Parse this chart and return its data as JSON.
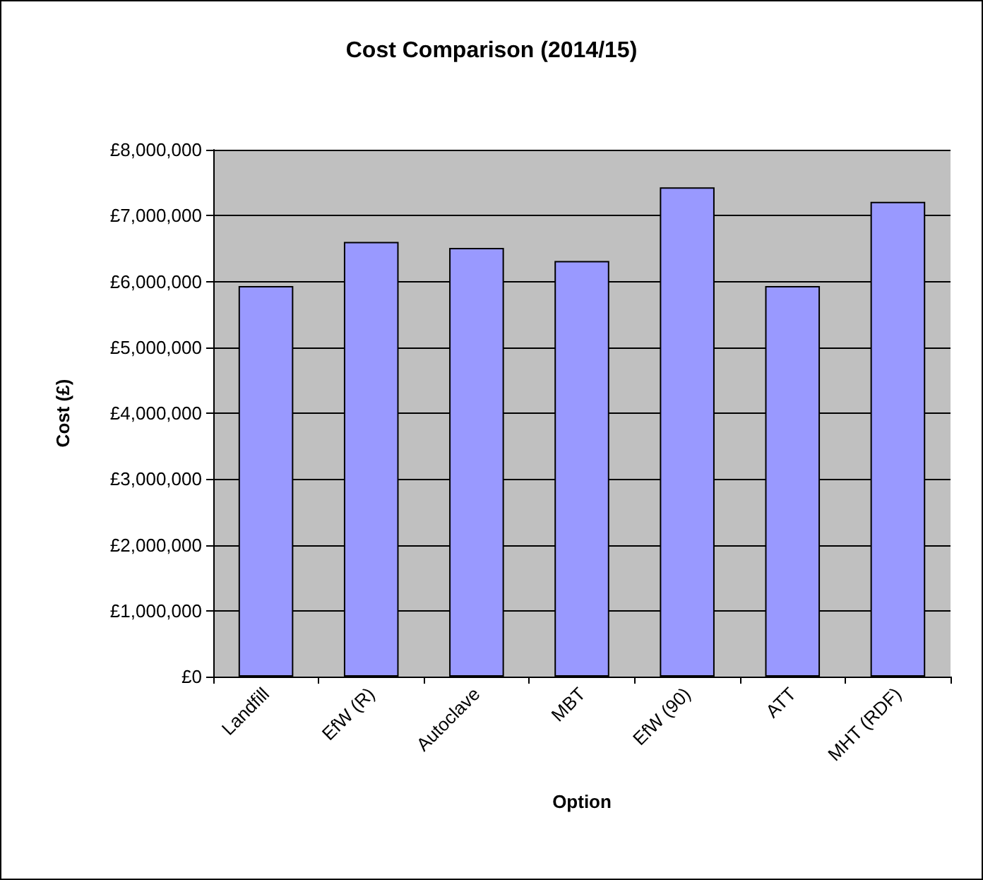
{
  "chart_data": {
    "type": "bar",
    "title": "Cost Comparison (2014/15)",
    "xlabel": "Option",
    "ylabel": "Cost (£)",
    "categories": [
      "Landfill",
      "EfW (R)",
      "Autoclave",
      "MBT",
      "EfW (90)",
      "ATT",
      "MHT (RDF)"
    ],
    "values": [
      5930000,
      6600000,
      6510000,
      6310000,
      7430000,
      5930000,
      7210000
    ],
    "color": "#9999ff",
    "ylim": [
      0,
      8000000
    ],
    "yticks": [
      {
        "value": 0,
        "label": "£0"
      },
      {
        "value": 1000000,
        "label": "£1,000,000"
      },
      {
        "value": 2000000,
        "label": "£2,000,000"
      },
      {
        "value": 3000000,
        "label": "£3,000,000"
      },
      {
        "value": 4000000,
        "label": "£4,000,000"
      },
      {
        "value": 5000000,
        "label": "£5,000,000"
      },
      {
        "value": 6000000,
        "label": "£6,000,000"
      },
      {
        "value": 7000000,
        "label": "£7,000,000"
      },
      {
        "value": 8000000,
        "label": "£8,000,000"
      }
    ],
    "grid": "y"
  }
}
